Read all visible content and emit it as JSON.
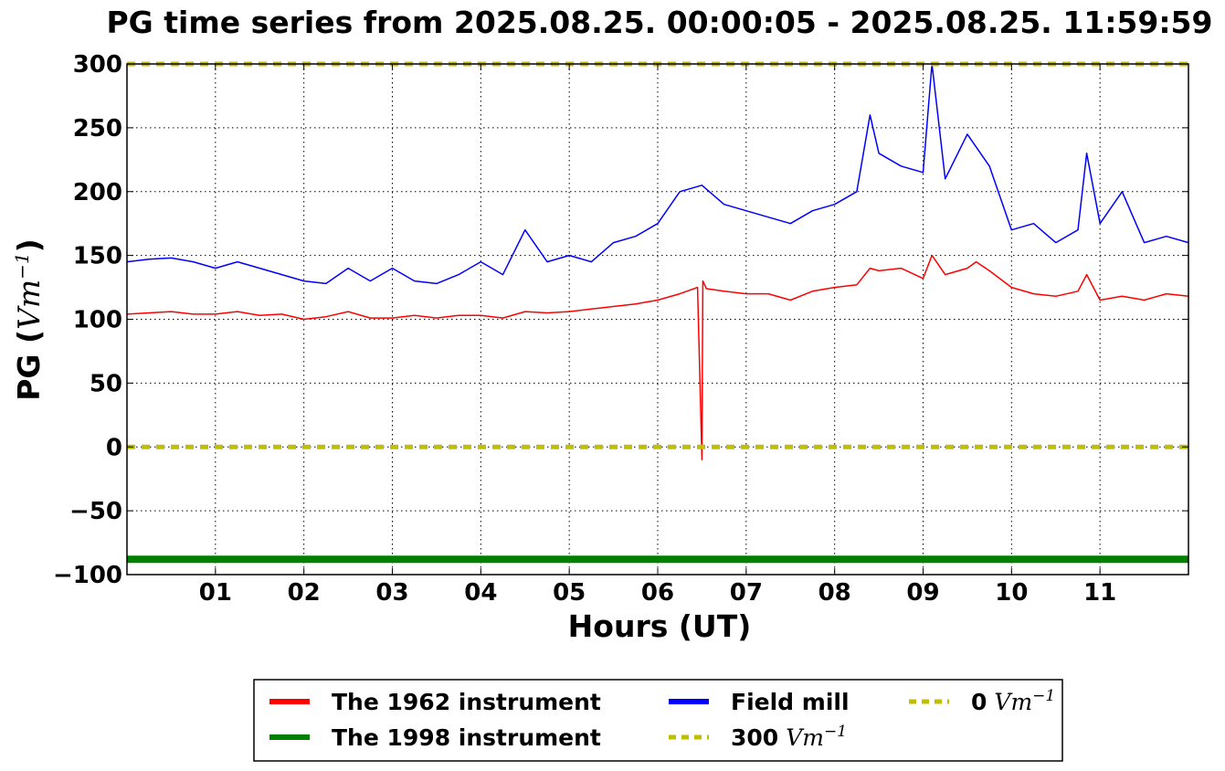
{
  "chart_data": {
    "type": "line",
    "title": "PG time series from 2025.08.25. 00:00:05 - 2025.08.25. 11:59:59",
    "xlabel": "Hours (UT)",
    "ylabel": {
      "prefix": "PG (",
      "unit": "Vm",
      "exp": "−1",
      "suffix": ")"
    },
    "xlim": [
      0,
      12
    ],
    "ylim": [
      -100,
      300
    ],
    "grid": true,
    "legend_position": "bottom-center, below plot",
    "x_ticks": [
      {
        "value": 1,
        "label": "01"
      },
      {
        "value": 2,
        "label": "02"
      },
      {
        "value": 3,
        "label": "03"
      },
      {
        "value": 4,
        "label": "04"
      },
      {
        "value": 5,
        "label": "05"
      },
      {
        "value": 6,
        "label": "06"
      },
      {
        "value": 7,
        "label": "07"
      },
      {
        "value": 8,
        "label": "08"
      },
      {
        "value": 9,
        "label": "09"
      },
      {
        "value": 10,
        "label": "10"
      },
      {
        "value": 11,
        "label": "11"
      }
    ],
    "y_ticks": [
      {
        "value": 300,
        "label": "300"
      },
      {
        "value": 250,
        "label": "250"
      },
      {
        "value": 200,
        "label": "200"
      },
      {
        "value": 150,
        "label": "150"
      },
      {
        "value": 100,
        "label": "100"
      },
      {
        "value": 50,
        "label": "50"
      },
      {
        "value": 0,
        "label": "0"
      },
      {
        "value": -50,
        "label": "−50"
      },
      {
        "value": -100,
        "label": "−100"
      }
    ],
    "series": [
      {
        "name": "The 1962 instrument",
        "color": "#ff0000",
        "line": "solid-thin",
        "x": [
          0,
          0.25,
          0.5,
          0.75,
          1,
          1.25,
          1.5,
          1.75,
          2,
          2.25,
          2.5,
          2.75,
          3,
          3.25,
          3.5,
          3.75,
          4,
          4.25,
          4.5,
          4.75,
          5,
          5.25,
          5.5,
          5.75,
          6,
          6.25,
          6.45,
          6.5,
          6.51,
          6.55,
          6.75,
          7,
          7.25,
          7.5,
          7.75,
          8,
          8.25,
          8.4,
          8.5,
          8.75,
          9,
          9.1,
          9.25,
          9.5,
          9.6,
          9.75,
          10,
          10.25,
          10.5,
          10.75,
          10.85,
          11,
          11.25,
          11.5,
          11.75,
          12
        ],
        "y": [
          104,
          105,
          106,
          104,
          104,
          106,
          103,
          104,
          100,
          102,
          106,
          101,
          101,
          103,
          101,
          103,
          103,
          101,
          106,
          105,
          106,
          108,
          110,
          112,
          115,
          120,
          125,
          -10,
          130,
          124,
          122,
          120,
          120,
          115,
          122,
          125,
          127,
          140,
          138,
          140,
          132,
          150,
          135,
          140,
          145,
          138,
          125,
          120,
          118,
          122,
          135,
          115,
          118,
          115,
          120,
          118
        ]
      },
      {
        "name": "Field mill",
        "color": "#0000ff",
        "line": "solid-thin",
        "x": [
          0,
          0.25,
          0.5,
          0.75,
          1,
          1.25,
          1.5,
          1.75,
          2,
          2.25,
          2.5,
          2.75,
          3,
          3.25,
          3.5,
          3.75,
          4,
          4.25,
          4.5,
          4.75,
          5,
          5.25,
          5.5,
          5.75,
          6,
          6.25,
          6.5,
          6.75,
          7,
          7.25,
          7.5,
          7.75,
          8,
          8.25,
          8.4,
          8.5,
          8.75,
          9,
          9.1,
          9.25,
          9.5,
          9.75,
          10,
          10.25,
          10.5,
          10.75,
          10.85,
          11,
          11.25,
          11.5,
          11.75,
          12
        ],
        "y": [
          145,
          147,
          148,
          145,
          140,
          145,
          140,
          135,
          130,
          128,
          140,
          130,
          140,
          130,
          128,
          135,
          145,
          135,
          170,
          145,
          150,
          145,
          160,
          165,
          175,
          200,
          205,
          190,
          185,
          180,
          175,
          185,
          190,
          200,
          260,
          230,
          220,
          215,
          300,
          210,
          245,
          220,
          170,
          175,
          160,
          170,
          230,
          175,
          200,
          160,
          165,
          160
        ]
      },
      {
        "name": "The 1998 instrument",
        "color": "#008000",
        "line": "solid-thick",
        "x": [
          0,
          12
        ],
        "y": [
          -88,
          -88
        ]
      },
      {
        "name": "300 Vm⁻¹",
        "color": "#bfbf00",
        "line": "dotted-thick",
        "x": [
          0,
          12
        ],
        "y": [
          300,
          300
        ]
      },
      {
        "name": "0 Vm⁻¹",
        "color": "#bfbf00",
        "line": "dotted-thick",
        "x": [
          0,
          12
        ],
        "y": [
          0,
          0
        ]
      }
    ],
    "legend": [
      {
        "label": "The 1962 instrument",
        "value": "",
        "unit": "",
        "exp": "",
        "color": "#ff0000",
        "style": "solid"
      },
      {
        "label": "The 1998 instrument",
        "value": "",
        "unit": "",
        "exp": "",
        "color": "#008000",
        "style": "solid"
      },
      {
        "label": "Field mill",
        "value": "",
        "unit": "",
        "exp": "",
        "color": "#0000ff",
        "style": "solid"
      },
      {
        "label": "",
        "value": "300",
        "unit": "Vm",
        "exp": "−1",
        "color": "#bfbf00",
        "style": "dotted"
      },
      {
        "label": "",
        "value": "0",
        "unit": "Vm",
        "exp": "−1",
        "color": "#bfbf00",
        "style": "dotted"
      }
    ]
  }
}
